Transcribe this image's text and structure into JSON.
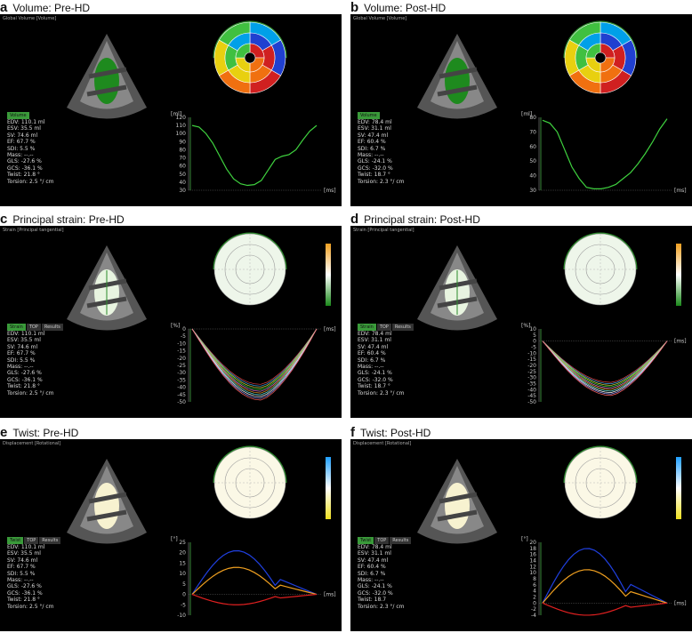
{
  "panels": [
    {
      "letter": "a",
      "title": "Volume: Pre-HD",
      "topbar": "Global Volume [Volume]",
      "tabs": [
        "Volume"
      ],
      "stats": [
        "EDV: 110.1 ml",
        "ESV: 35.5 ml",
        "SV: 74.6 ml",
        "EF: 67.7 %",
        "SDI: 5.5 %",
        "Mass: --.--",
        "GLS: -27.6 %",
        "GCS: -36.1 %",
        "Twist: 21.8 °",
        "Torsion: 2.5 °/ cm"
      ],
      "y_unit": "[ml]",
      "x_unit": "[ms]",
      "yticks": [
        "120",
        "110",
        "100",
        "90",
        "80",
        "70",
        "60",
        "50",
        "40",
        "30"
      ]
    },
    {
      "letter": "b",
      "title": "Volume: Post-HD",
      "topbar": "Global Volume [Volume]",
      "tabs": [
        "Volume"
      ],
      "stats": [
        "EDV: 78.4 ml",
        "ESV: 31.1 ml",
        "SV: 47.4 ml",
        "EF: 60.4 %",
        "SDI: 6.7 %",
        "Mass: --.--",
        "GLS: -24.1 %",
        "GCS: -32.0 %",
        "Twist: 18.7 °",
        "Torsion: 2.3 °/ cm"
      ],
      "y_unit": "[ml]",
      "x_unit": "[ms]",
      "yticks": [
        "80",
        "70",
        "60",
        "50",
        "40",
        "30"
      ]
    },
    {
      "letter": "c",
      "title": "Principal strain: Pre-HD",
      "topbar": "Strain [Principal tangential]",
      "tabs": [
        "Strain",
        "TOP",
        "Results"
      ],
      "stats": [
        "EDV: 110.1 ml",
        "ESV: 35.5 ml",
        "SV: 74.6 ml",
        "EF: 67.7 %",
        "SDI: 5.5 %",
        "Mass: --.--",
        "GLS: -27.6 %",
        "GCS: -36.1 %",
        "Twist: 21.8 °",
        "Torsion: 2.5 °/ cm"
      ],
      "y_unit": "[%]",
      "x_unit": "[ms]",
      "yticks": [
        "0",
        "-5",
        "-10",
        "-15",
        "-20",
        "-25",
        "-30",
        "-35",
        "-40",
        "-45",
        "-50"
      ]
    },
    {
      "letter": "d",
      "title": "Principal strain: Post-HD",
      "topbar": "Strain [Principal tangential]",
      "tabs": [
        "Strain",
        "TOP",
        "Results"
      ],
      "stats": [
        "EDV: 78.4 ml",
        "ESV: 31.1 ml",
        "SV: 47.4 ml",
        "EF: 60.4 %",
        "SDI: 6.7 %",
        "Mass: --.--",
        "GLS: -24.1 %",
        "GCS: -32.0 %",
        "Twist: 18.7 °",
        "Torsion: 2.3 °/ cm"
      ],
      "y_unit": "[%]",
      "x_unit": "[ms]",
      "yticks": [
        "10",
        "5",
        "0",
        "-5",
        "-10",
        "-15",
        "-20",
        "-25",
        "-30",
        "-35",
        "-40",
        "-45",
        "-50"
      ]
    },
    {
      "letter": "e",
      "title": "Twist: Pre-HD",
      "topbar": "Displacement [Rotational]",
      "tabs": [
        "Twist",
        "TOP",
        "Results"
      ],
      "stats": [
        "EDV: 110.1 ml",
        "ESV: 35.5 ml",
        "SV: 74.6 ml",
        "EF: 67.7 %",
        "SDI: 5.5 %",
        "Mass: --.--",
        "GLS: -27.6 %",
        "GCS: -36.1 %",
        "Twist: 21.8 °",
        "Torsion: 2.5 °/ cm"
      ],
      "y_unit": "[°]",
      "x_unit": "[ms]",
      "yticks": [
        "25",
        "20",
        "15",
        "10",
        "5",
        "0",
        "-5",
        "-10"
      ]
    },
    {
      "letter": "f",
      "title": "Twist: Post-HD",
      "topbar": "Displacement [Rotational]",
      "tabs": [
        "Twist",
        "TOP",
        "Results"
      ],
      "stats": [
        "EDV: 78.4 ml",
        "ESV: 31.1 ml",
        "SV: 47.4 ml",
        "EF: 60.4 %",
        "SDI: 6.7 %",
        "Mass: --.--",
        "GLS: -24.1 %",
        "GCS: -32.0 %",
        "Twist: 18.7",
        "Torsion: 2.3 °/ cm"
      ],
      "y_unit": "[°]",
      "x_unit": "[ms]",
      "yticks": [
        "20",
        "18",
        "16",
        "14",
        "12",
        "10",
        "8",
        "6",
        "4",
        "2",
        "0",
        "-2",
        "-4"
      ]
    }
  ],
  "colors": {
    "volume_curve": "#3fd23f",
    "twist_base": "#e02020",
    "twist_apex": "#2040e0",
    "twist_net": "#f0a020"
  }
}
